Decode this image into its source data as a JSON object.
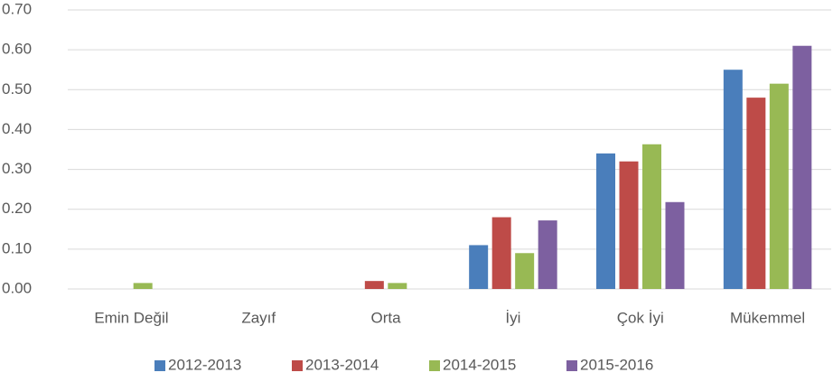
{
  "chart_data": {
    "type": "bar",
    "categories": [
      "Emin Değil",
      "Zayıf",
      "Orta",
      "İyi",
      "Çok İyi",
      "Mükemmel"
    ],
    "series": [
      {
        "name": "2012-2013",
        "color": "#4a7ebb",
        "values": [
          0,
          0,
          0,
          0.11,
          0.34,
          0.55
        ]
      },
      {
        "name": "2013-2014",
        "color": "#be4b48",
        "values": [
          0,
          0,
          0.02,
          0.18,
          0.32,
          0.48
        ]
      },
      {
        "name": "2014-2015",
        "color": "#98b954",
        "values": [
          0.015,
          0,
          0.015,
          0.09,
          0.363,
          0.515
        ]
      },
      {
        "name": "2015-2016",
        "color": "#7d60a0",
        "values": [
          0,
          0,
          0,
          0.172,
          0.218,
          0.61
        ]
      }
    ],
    "ylim": [
      0,
      0.7
    ],
    "yticks": [
      {
        "value": 0,
        "label": "0.00"
      },
      {
        "value": 0.1,
        "label": "0.10"
      },
      {
        "value": 0.2,
        "label": "0.20"
      },
      {
        "value": 0.3,
        "label": "0.30"
      },
      {
        "value": 0.4,
        "label": "0.40"
      },
      {
        "value": 0.5,
        "label": "0.50"
      },
      {
        "value": 0.6,
        "label": "0.60"
      },
      {
        "value": 0.7,
        "label": "0.70"
      }
    ],
    "grid": true,
    "legend": "bottom"
  }
}
